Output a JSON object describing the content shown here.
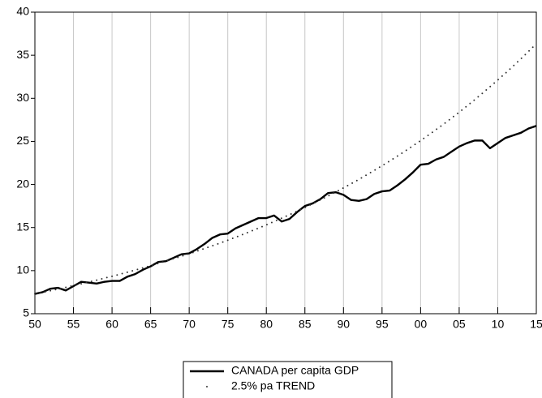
{
  "chart_data": {
    "type": "line",
    "x": [
      1950,
      1951,
      1952,
      1953,
      1954,
      1955,
      1956,
      1957,
      1958,
      1959,
      1960,
      1961,
      1962,
      1963,
      1964,
      1965,
      1966,
      1967,
      1968,
      1969,
      1970,
      1971,
      1972,
      1973,
      1974,
      1975,
      1976,
      1977,
      1978,
      1979,
      1980,
      1981,
      1982,
      1983,
      1984,
      1985,
      1986,
      1987,
      1988,
      1989,
      1990,
      1991,
      1992,
      1993,
      1994,
      1995,
      1996,
      1997,
      1998,
      1999,
      2000,
      2001,
      2002,
      2003,
      2004,
      2005,
      2006,
      2007,
      2008,
      2009,
      2010,
      2011,
      2012,
      2013,
      2014,
      2015
    ],
    "series": [
      {
        "name": "CANADA per capita GDP",
        "color": "#000000",
        "line_style": "solid",
        "values": [
          7.3,
          7.5,
          7.9,
          8.0,
          7.7,
          8.2,
          8.7,
          8.6,
          8.5,
          8.7,
          8.8,
          8.8,
          9.3,
          9.6,
          10.1,
          10.5,
          11.0,
          11.1,
          11.5,
          11.9,
          12.0,
          12.5,
          13.1,
          13.8,
          14.2,
          14.3,
          14.9,
          15.3,
          15.7,
          16.1,
          16.1,
          16.4,
          15.7,
          16.0,
          16.8,
          17.5,
          17.8,
          18.3,
          19.0,
          19.1,
          18.8,
          18.2,
          18.1,
          18.3,
          18.9,
          19.2,
          19.3,
          19.9,
          20.6,
          21.4,
          22.3,
          22.4,
          22.9,
          23.2,
          23.8,
          24.4,
          24.8,
          25.1,
          25.1,
          24.2,
          24.8,
          25.4,
          25.7,
          26.0,
          26.5,
          26.8
        ]
      },
      {
        "name": "2.5% pa TREND",
        "color": "#333333",
        "line_style": "dotted",
        "values": [
          7.3,
          7.48,
          7.67,
          7.86,
          8.06,
          8.26,
          8.47,
          8.68,
          8.89,
          9.12,
          9.34,
          9.58,
          9.82,
          10.06,
          10.31,
          10.57,
          10.84,
          11.11,
          11.39,
          11.67,
          11.96,
          12.26,
          12.57,
          12.88,
          13.2,
          13.53,
          13.87,
          14.22,
          14.57,
          14.94,
          15.31,
          15.7,
          16.09,
          16.49,
          16.9,
          17.32,
          17.76,
          18.2,
          18.66,
          19.12,
          19.6,
          20.09,
          20.59,
          21.11,
          21.64,
          22.18,
          22.73,
          23.3,
          23.88,
          24.48,
          25.09,
          25.72,
          26.36,
          27.02,
          27.7,
          28.39,
          29.1,
          29.83,
          30.57,
          31.34,
          32.12,
          32.92,
          33.74,
          34.59,
          35.45,
          36.34
        ]
      }
    ],
    "xlim": [
      1950,
      2015
    ],
    "xticks": [
      {
        "value": 1950,
        "label": "50"
      },
      {
        "value": 1955,
        "label": "55"
      },
      {
        "value": 1960,
        "label": "60"
      },
      {
        "value": 1965,
        "label": "65"
      },
      {
        "value": 1970,
        "label": "70"
      },
      {
        "value": 1975,
        "label": "75"
      },
      {
        "value": 1980,
        "label": "80"
      },
      {
        "value": 1985,
        "label": "85"
      },
      {
        "value": 1990,
        "label": "90"
      },
      {
        "value": 1995,
        "label": "95"
      },
      {
        "value": 2000,
        "label": "00"
      },
      {
        "value": 2005,
        "label": "05"
      },
      {
        "value": 2010,
        "label": "10"
      },
      {
        "value": 2015,
        "label": "15"
      }
    ],
    "ylim": [
      5,
      40
    ],
    "yticks": [
      5,
      10,
      15,
      20,
      25,
      30,
      35,
      40
    ],
    "grid": true,
    "legend": "bottom"
  }
}
